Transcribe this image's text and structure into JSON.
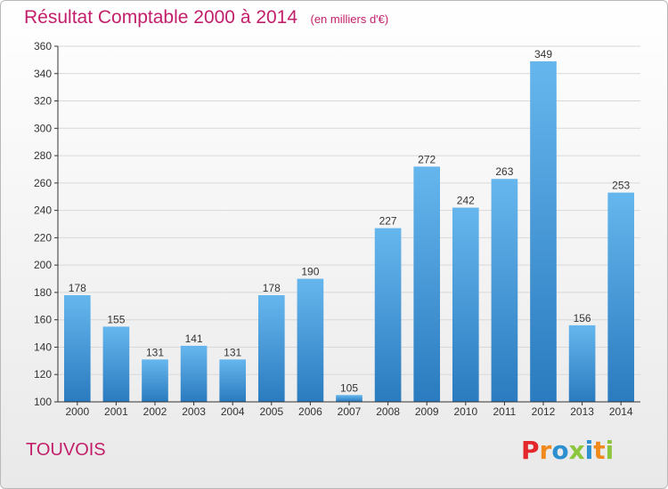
{
  "header": {
    "title": "Résultat Comptable 2000 à 2014",
    "subtitle": "(en milliers d'€)"
  },
  "footer": {
    "commune": "TOUVOIS",
    "logo_text": "Proxiti",
    "logo_colors": [
      "#e3272b",
      "#f08a1d",
      "#2b8fd0",
      "#8cc63e",
      "#2b8fd0",
      "#f08a1d",
      "#8cc63e"
    ]
  },
  "colors": {
    "bar_light": "#66b6ee",
    "bar_dark": "#2a7bbf",
    "grid": "#d8d8d8",
    "axis": "#333333",
    "title": "#c21f6a"
  },
  "chart_data": {
    "type": "bar",
    "title": "Résultat Comptable 2000 à 2014",
    "subtitle": "(en milliers d'€)",
    "xlabel": "",
    "ylabel": "",
    "ylim": [
      100,
      360
    ],
    "yticks": [
      100,
      120,
      140,
      160,
      180,
      200,
      220,
      240,
      260,
      280,
      300,
      320,
      340,
      360
    ],
    "grid": true,
    "categories": [
      "2000",
      "2001",
      "2002",
      "2003",
      "2004",
      "2005",
      "2006",
      "2007",
      "2008",
      "2009",
      "2010",
      "2011",
      "2012",
      "2013",
      "2014"
    ],
    "values": [
      178,
      155,
      131,
      141,
      131,
      178,
      190,
      105,
      227,
      272,
      242,
      263,
      349,
      156,
      253
    ]
  }
}
